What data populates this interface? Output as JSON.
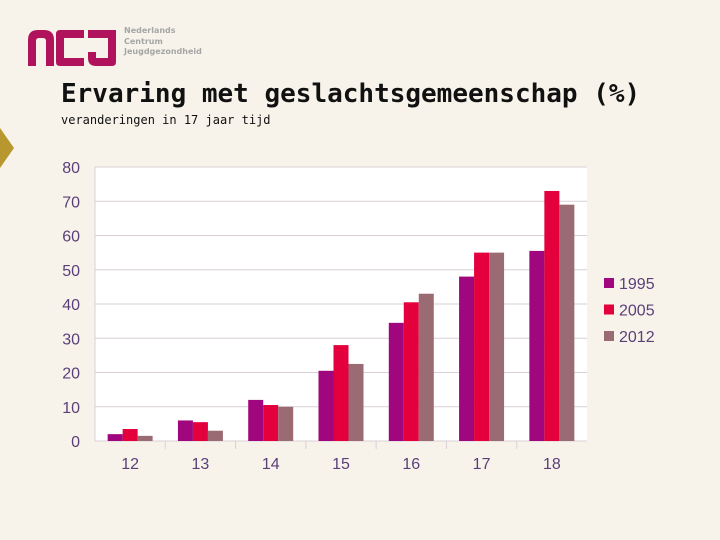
{
  "logo": {
    "mark": "ncj",
    "lines": [
      "Nederlands",
      "Centrum",
      "Jeugdgezondheid"
    ],
    "brand_color": "#b0125c"
  },
  "accent_color": "#b8972e",
  "chart_data": {
    "type": "bar",
    "title": "Ervaring met geslachtsgemeenschap (%)",
    "subtitle": "veranderingen in 17 jaar tijd",
    "xlabel": "",
    "ylabel": "",
    "categories": [
      "12",
      "13",
      "14",
      "15",
      "16",
      "17",
      "18"
    ],
    "series": [
      {
        "name": "1995",
        "color": "#a0067e",
        "values": [
          2,
          6,
          12,
          20.5,
          34.5,
          48,
          55.5
        ]
      },
      {
        "name": "2005",
        "color": "#e3003c",
        "values": [
          3.5,
          5.5,
          10.5,
          28,
          40.5,
          55,
          73
        ]
      },
      {
        "name": "2012",
        "color": "#9b6b73",
        "values": [
          1.5,
          3,
          10,
          22.5,
          43,
          55,
          69
        ]
      }
    ],
    "ylim": [
      0,
      80
    ],
    "yticks": [
      "0",
      "10",
      "20",
      "30",
      "40",
      "50",
      "60",
      "70",
      "80"
    ],
    "grid": true,
    "legend_position": "right"
  }
}
